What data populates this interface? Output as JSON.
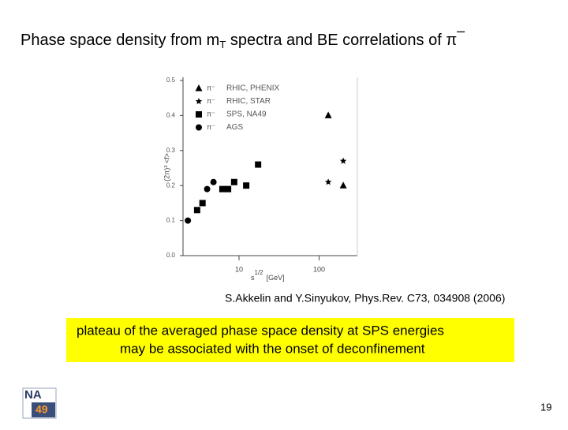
{
  "slide": {
    "title": "Phase space density from m",
    "title_sub": "T",
    "title_rest": " spectra and BE correlations of π",
    "title_sup": "–",
    "citation": "S.Akkelin and Y.Sinyukov, Phys.Rev. C73, 034908 (2006)",
    "box_lines": [
      "plateau of the averaged phase space density at SPS energies",
      "may be associated with the onset of deconfinement"
    ],
    "logo_top": "NA",
    "logo_bottom": "49",
    "page_number": "19"
  },
  "chart_data": {
    "type": "scatter",
    "x_label": "s",
    "x_label_sup": "1/2",
    "x_label_unit": "[GeV]",
    "y_label": "(2π)³ <f>",
    "log_x": true,
    "xlim": [
      2,
      300
    ],
    "xticks": [
      10,
      100
    ],
    "ylim": [
      0,
      0.5
    ],
    "yticks": [
      {
        "value": 0,
        "label": "0.0"
      },
      0.1,
      0.2,
      0.3,
      0.4,
      0.5
    ],
    "series": [
      {
        "name": "RHIC, PHENIX",
        "particle": "π⁻",
        "marker": "triangle",
        "color": "#000000",
        "x": [
          130,
          200
        ],
        "values": [
          0.4,
          0.2
        ]
      },
      {
        "name": "RHIC, STAR",
        "particle": "π⁻",
        "marker": "star",
        "color": "#000000",
        "x": [
          130,
          200
        ],
        "values": [
          0.21,
          0.27
        ]
      },
      {
        "name": "SPS, NA49",
        "particle": "π⁻",
        "marker": "square",
        "color": "#000000",
        "x": [
          3.0,
          3.5,
          6.2,
          7.3,
          8.7,
          12.3,
          17.3
        ],
        "values": [
          0.13,
          0.15,
          0.19,
          0.19,
          0.21,
          0.2,
          0.26
        ]
      },
      {
        "name": "AGS",
        "particle": "π⁻",
        "marker": "circle",
        "color": "#000000",
        "x": [
          2.3,
          4.0,
          4.8
        ],
        "values": [
          0.1,
          0.19,
          0.21
        ]
      }
    ]
  }
}
